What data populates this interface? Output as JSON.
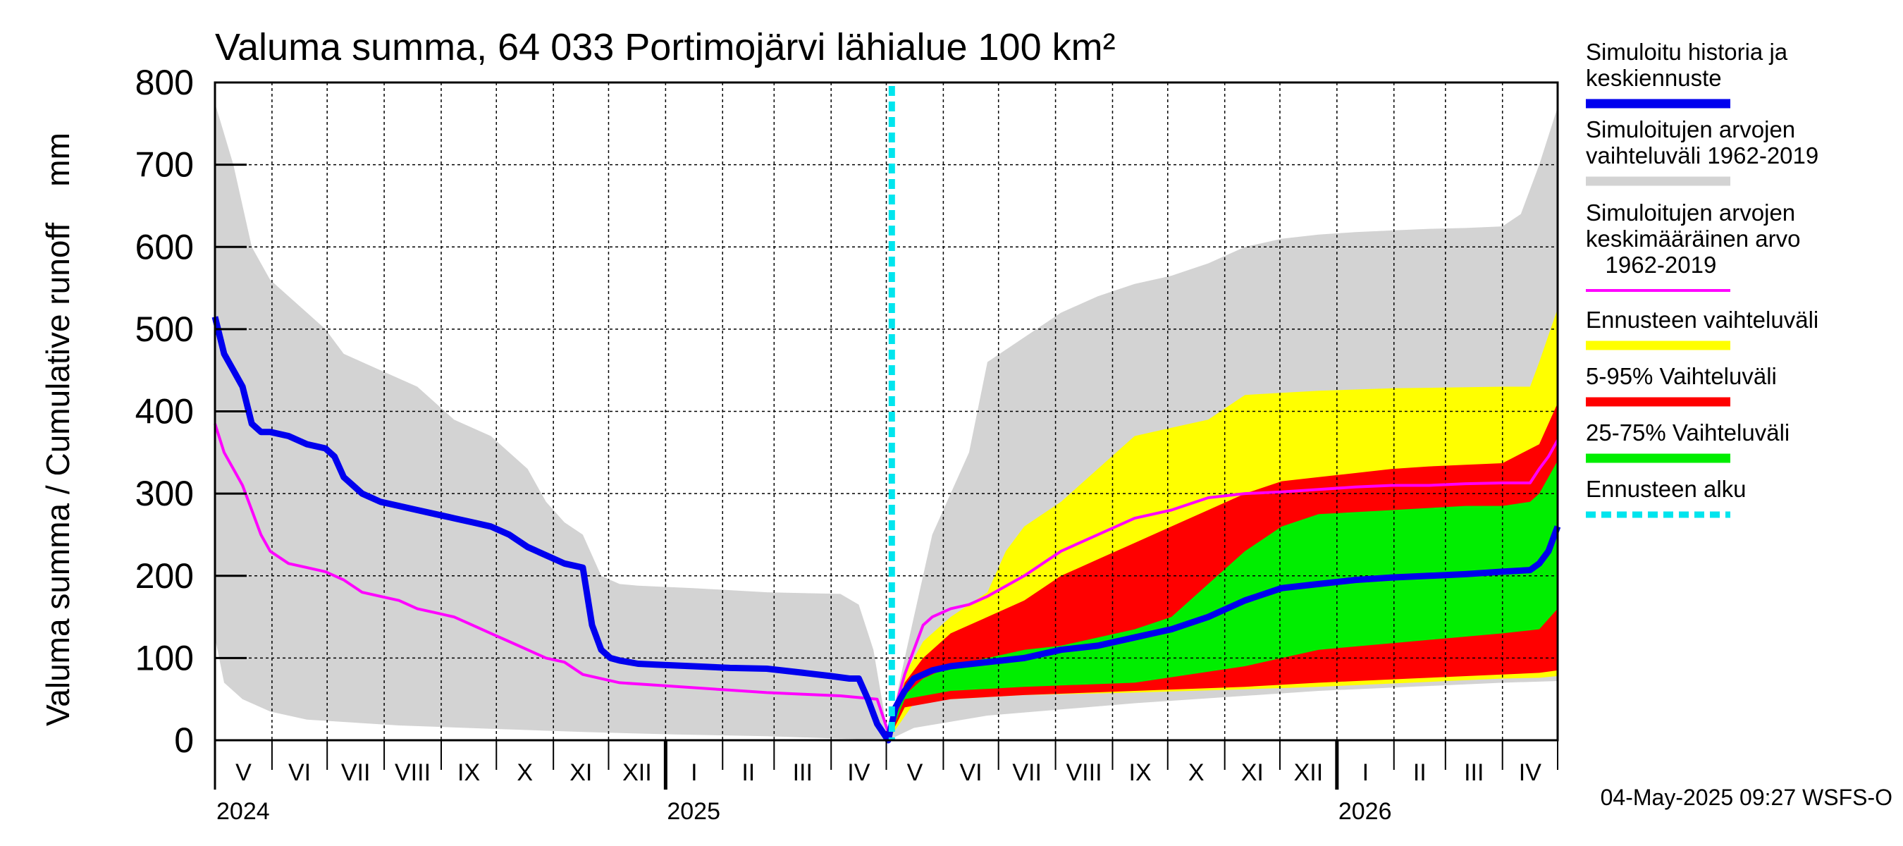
{
  "chart_data": {
    "type": "area",
    "title": "Valuma summa, 64 033 Portimojärvi lähialue 100 km²",
    "ylabel": "Valuma summa / Cumulative runoff    mm",
    "ylim": [
      0,
      800
    ],
    "yticks": [
      "0",
      "100",
      "200",
      "300",
      "400",
      "500",
      "600",
      "700",
      "800"
    ],
    "month_labels": [
      "V",
      "VI",
      "VII",
      "VIII",
      "IX",
      "X",
      "XI",
      "XII",
      "I",
      "II",
      "III",
      "IV",
      "V",
      "VI",
      "VII",
      "VIII",
      "IX",
      "X",
      "XI",
      "XII",
      "I",
      "II",
      "III",
      "IV"
    ],
    "year_labels": [
      "2024",
      "2025",
      "2026"
    ],
    "x_unit": "days since 2024-05-01",
    "x_range": [
      0,
      730
    ],
    "forecast_start_day": 368,
    "footer": "04-May-2025 09:27 WSFS-O",
    "legend": [
      {
        "label": "Simuloitu historia ja keskiennuste",
        "color": "#0000ee",
        "style": "thick"
      },
      {
        "label": "Simuloitujen arvojen vaihteluväli 1962-2019",
        "color": "#d3d3d3",
        "style": "thick"
      },
      {
        "label": "Simuloitujen arvojen keskimääräinen arvo   1962-2019",
        "color": "#ff00ff",
        "style": "line"
      },
      {
        "label": "Ennusteen vaihteluväli",
        "color": "#ffff00",
        "style": "thick"
      },
      {
        "label": "5-95% Vaihteluväli",
        "color": "#ff0000",
        "style": "thick"
      },
      {
        "label": "25-75% Vaihteluväli",
        "color": "#00ee00",
        "style": "thick"
      },
      {
        "label": "Ennusteen alku",
        "color": "#00e5ee",
        "style": "dashed"
      }
    ],
    "series": [
      {
        "name": "Simulated range max",
        "x": [
          0,
          10,
          20,
          30,
          40,
          50,
          60,
          70,
          90,
          110,
          130,
          150,
          170,
          180,
          190,
          200,
          210,
          215,
          220,
          230,
          260,
          300,
          340,
          350,
          358,
          366
        ],
        "values": [
          775,
          700,
          600,
          560,
          540,
          520,
          500,
          470,
          450,
          430,
          390,
          370,
          330,
          290,
          265,
          250,
          200,
          195,
          190,
          188,
          185,
          180,
          178,
          165,
          110,
          5
        ]
      },
      {
        "name": "Simulated range min",
        "x": [
          0,
          5,
          15,
          30,
          50,
          100,
          150,
          200,
          250,
          300,
          366
        ],
        "values": [
          125,
          70,
          50,
          35,
          25,
          18,
          14,
          10,
          7,
          5,
          0
        ]
      },
      {
        "name": "Simulated range max (forecast period)",
        "x": [
          366,
          375,
          390,
          410,
          420,
          440,
          460,
          480,
          500,
          520,
          540,
          560,
          580,
          600,
          620,
          640,
          660,
          680,
          700,
          710,
          720,
          730
        ],
        "values": [
          5,
          100,
          250,
          350,
          460,
          490,
          520,
          540,
          555,
          565,
          580,
          600,
          610,
          615,
          618,
          620,
          622,
          623,
          625,
          640,
          700,
          770
        ]
      },
      {
        "name": "Simulated range min (forecast period)",
        "x": [
          366,
          380,
          420,
          500,
          600,
          700,
          730
        ],
        "values": [
          0,
          15,
          30,
          45,
          60,
          70,
          72
        ]
      },
      {
        "name": "Forecast range max",
        "x": [
          366,
          375,
          385,
          400,
          420,
          430,
          440,
          460,
          480,
          500,
          520,
          540,
          560,
          600,
          640,
          700,
          715,
          720,
          730
        ],
        "values": [
          5,
          80,
          120,
          150,
          180,
          230,
          260,
          290,
          330,
          370,
          380,
          390,
          420,
          425,
          428,
          430,
          430,
          460,
          525
        ]
      },
      {
        "name": "Forecast range min",
        "x": [
          366,
          380,
          400,
          440,
          500,
          560,
          600,
          650,
          700,
          720,
          730
        ],
        "values": [
          0,
          45,
          50,
          55,
          58,
          62,
          65,
          70,
          75,
          76,
          78
        ]
      },
      {
        "name": "5-95% max",
        "x": [
          366,
          375,
          385,
          400,
          420,
          440,
          460,
          480,
          500,
          520,
          540,
          560,
          580,
          600,
          620,
          640,
          660,
          680,
          700,
          720,
          730
        ],
        "values": [
          5,
          70,
          100,
          130,
          150,
          170,
          200,
          220,
          240,
          260,
          280,
          300,
          315,
          320,
          325,
          330,
          333,
          335,
          337,
          360,
          410
        ]
      },
      {
        "name": "5-95% min",
        "x": [
          366,
          375,
          400,
          440,
          500,
          560,
          600,
          650,
          700,
          720,
          730
        ],
        "values": [
          0,
          40,
          50,
          55,
          60,
          65,
          70,
          75,
          80,
          82,
          85
        ]
      },
      {
        "name": "25-75% max",
        "x": [
          366,
          375,
          385,
          400,
          420,
          440,
          460,
          480,
          500,
          520,
          540,
          560,
          580,
          600,
          640,
          680,
          700,
          715,
          720,
          730
        ],
        "values": [
          5,
          55,
          75,
          90,
          100,
          110,
          115,
          125,
          135,
          150,
          190,
          230,
          260,
          275,
          280,
          285,
          285,
          290,
          300,
          340
        ]
      },
      {
        "name": "25-75% min",
        "x": [
          366,
          375,
          400,
          440,
          500,
          560,
          600,
          650,
          700,
          720,
          730
        ],
        "values": [
          0,
          50,
          60,
          65,
          70,
          90,
          110,
          120,
          130,
          135,
          160
        ]
      },
      {
        "name": "Simulated mean 1962-2019",
        "x": [
          0,
          5,
          10,
          15,
          20,
          25,
          30,
          40,
          50,
          60,
          70,
          80,
          90,
          100,
          110,
          120,
          130,
          140,
          150,
          160,
          170,
          180,
          190,
          200,
          220,
          240,
          260,
          280,
          300,
          320,
          340,
          350,
          360,
          366,
          370,
          375,
          380,
          385,
          390,
          400,
          410,
          420,
          440,
          460,
          480,
          500,
          520,
          540,
          560,
          580,
          600,
          620,
          640,
          660,
          680,
          700,
          715,
          720,
          725,
          730
        ],
        "values": [
          385,
          350,
          330,
          310,
          280,
          250,
          230,
          215,
          210,
          205,
          195,
          180,
          175,
          170,
          160,
          155,
          150,
          140,
          130,
          120,
          110,
          100,
          95,
          80,
          70,
          67,
          64,
          61,
          58,
          56,
          54,
          52,
          50,
          10,
          40,
          80,
          110,
          140,
          150,
          160,
          165,
          175,
          200,
          230,
          250,
          270,
          280,
          295,
          300,
          302,
          305,
          308,
          310,
          310,
          312,
          313,
          313,
          330,
          345,
          365
        ]
      },
      {
        "name": "Simulated history and median forecast",
        "x": [
          0,
          5,
          10,
          15,
          20,
          25,
          30,
          40,
          50,
          60,
          65,
          70,
          80,
          90,
          100,
          110,
          120,
          130,
          140,
          150,
          160,
          170,
          180,
          190,
          200,
          205,
          210,
          215,
          220,
          225,
          230,
          240,
          260,
          280,
          300,
          320,
          335,
          345,
          350,
          355,
          360,
          366,
          370,
          375,
          380,
          390,
          400,
          420,
          440,
          460,
          480,
          500,
          520,
          540,
          560,
          580,
          600,
          620,
          640,
          660,
          680,
          700,
          715,
          720,
          725,
          730
        ],
        "values": [
          515,
          470,
          450,
          430,
          385,
          375,
          375,
          370,
          360,
          355,
          345,
          320,
          300,
          290,
          285,
          280,
          275,
          270,
          265,
          260,
          250,
          235,
          225,
          215,
          210,
          140,
          110,
          100,
          97,
          95,
          93,
          92,
          90,
          88,
          87,
          82,
          78,
          75,
          75,
          50,
          20,
          0,
          40,
          60,
          75,
          85,
          90,
          95,
          100,
          110,
          115,
          125,
          135,
          150,
          170,
          185,
          190,
          195,
          198,
          200,
          202,
          205,
          207,
          215,
          230,
          260
        ]
      }
    ]
  }
}
